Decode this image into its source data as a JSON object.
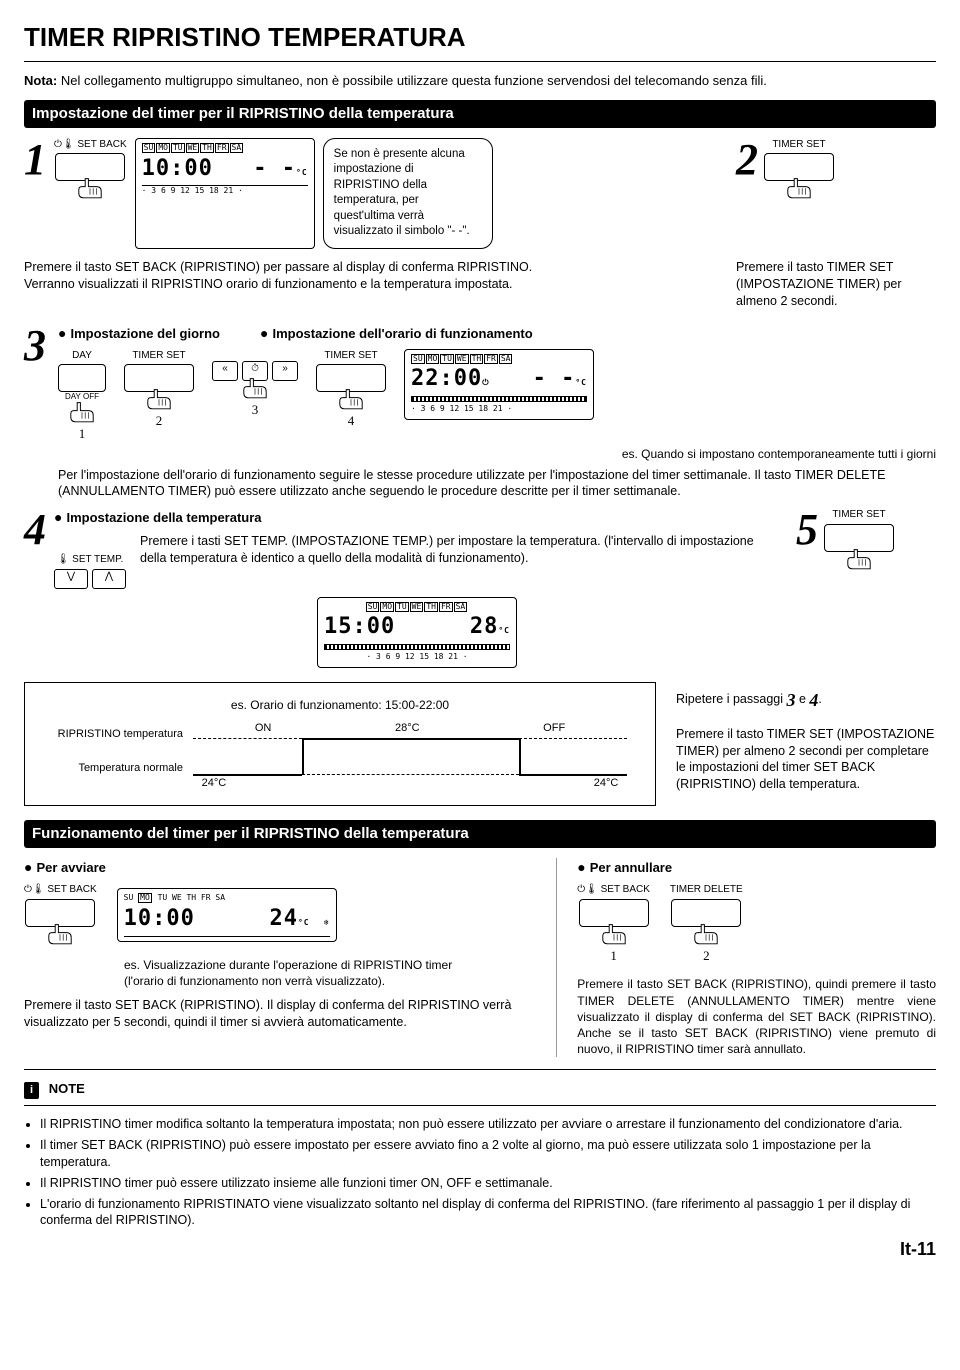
{
  "title": "TIMER RIPRISTINO TEMPERATURA",
  "note_prefix": "Nota:",
  "note_text": "Nel collegamento multigruppo simultaneo, non è possibile utilizzare questa funzione servendosi del telecomando senza fili.",
  "sec1_bar": "Impostazione del timer per il RIPRISTINO della temperatura",
  "step1": {
    "num": "1",
    "btn_label": "⏻🌡 SET BACK",
    "lcd_days": [
      "SU",
      "MO",
      "TU",
      "WE",
      "TH",
      "FR",
      "SA"
    ],
    "lcd_time": "10:00",
    "lcd_temp": "- -",
    "lcd_ticks": "· 3 6 9 12 15 18 21 ·",
    "callout": "Se non è presente alcuna impostazione di RIPRISTINO della temperatura, per quest'ultima verrà visualizzato il simbolo \"- -\".",
    "body": "Premere il tasto SET BACK (RIPRISTINO) per passare al display di conferma RIPRISTINO.\nVerranno visualizzati il RIPRISTINO orario di funzionamento e la temperatura impostata."
  },
  "step2": {
    "num": "2",
    "btn_label": "TIMER SET",
    "body": "Premere il tasto TIMER SET (IMPOSTAZIONE TIMER) per almeno 2 secondi."
  },
  "step3": {
    "num": "3",
    "lbl_day": "Impostazione del giorno",
    "lbl_time": "Impostazione dell'orario di funzionamento",
    "btn_day": "DAY",
    "btn_dayoff": "DAY OFF",
    "btn_timer": "TIMER SET",
    "lcd_time": "22:00",
    "lcd_temp": "- -",
    "nums": [
      "1",
      "2",
      "3",
      "4"
    ],
    "es": "es. Quando si impostano contemporaneamente tutti i giorni",
    "body": "Per l'impostazione dell'orario di funzionamento seguire le stesse procedure utilizzate per l'impostazione del timer settimanale. Il tasto TIMER DELETE (ANNULLAMENTO TIMER) può essere utilizzato anche seguendo le procedure descritte per il timer settimanale."
  },
  "step4": {
    "num": "4",
    "title": "Impostazione della temperatura",
    "btn_label": "🌡 SET TEMP.",
    "body": "Premere i tasti SET TEMP. (IMPOSTAZIONE TEMP.) per impostare la temperatura. (l'intervallo di impostazione della temperatura è identico a quello della modalità di funzionamento).",
    "lcd_time": "15:00",
    "lcd_temp": "28"
  },
  "step5": {
    "num": "5",
    "btn_label": "TIMER SET"
  },
  "chart": {
    "es": "es. Orario di funzionamento: 15:00-22:00",
    "rip": "RIPRISTINO temperatura",
    "norm": "Temperatura normale",
    "on": "ON",
    "off": "OFF",
    "t_low": "24°C",
    "t_high": "28°C",
    "right": "Ripetere i passaggi 3 e 4.\nPremere il tasto TIMER SET (IMPOSTAZIONE TIMER) per almeno 2 secondi per completare le impostazioni del timer SET BACK (RIPRISTINO) della temperatura."
  },
  "sec2_bar": "Funzionamento del timer per il RIPRISTINO della temperatura",
  "start": {
    "title": "Per avviare",
    "btn_label": "⏻🌡 SET BACK",
    "lcd_time": "10:00",
    "lcd_temp": "24",
    "lcd_days": [
      "SU",
      "MO",
      "TU",
      "WE",
      "TH",
      "FR",
      "SA"
    ],
    "es": "es. Visualizzazione durante l'operazione di RIPRISTINO timer\n(l'orario di funzionamento non verrà visualizzato).",
    "body": "Premere il tasto SET BACK (RIPRISTINO). Il display di conferma del RIPRISTINO verrà visualizzato per 5 secondi, quindi il timer si avvierà automaticamente."
  },
  "cancel": {
    "title": "Per annullare",
    "btn1": "⏻🌡 SET BACK",
    "btn2": "TIMER DELETE",
    "nums": [
      "1",
      "2"
    ],
    "body": "Premere il tasto SET BACK (RIPRISTINO), quindi premere il tasto TIMER DELETE (ANNULLAMENTO TIMER) mentre viene visualizzato il display di conferma del SET BACK (RIPRISTINO). Anche se il tasto SET BACK (RIPRISTINO) viene premuto di nuovo, il RIPRISTINO timer sarà annullato."
  },
  "notes_title": "NOTE",
  "notes": [
    "Il RIPRISTINO timer modifica soltanto la temperatura impostata; non può essere utilizzato per avviare o arrestare il funzionamento del condizionatore d'aria.",
    "Il timer SET BACK (RIPRISTINO) può essere impostato per essere avviato fino a 2 volte al giorno, ma può essere utilizzata solo 1 impostazione per la temperatura.",
    "Il RIPRISTINO timer può essere utilizzato insieme alle funzioni timer ON, OFF e settimanale.",
    "L'orario di funzionamento RIPRISTINATO viene visualizzato soltanto nel display di conferma del RIPRISTINO. (fare riferimento al passaggio 1 per il display di conferma del RIPRISTINO)."
  ],
  "pagefoot": "It-11"
}
